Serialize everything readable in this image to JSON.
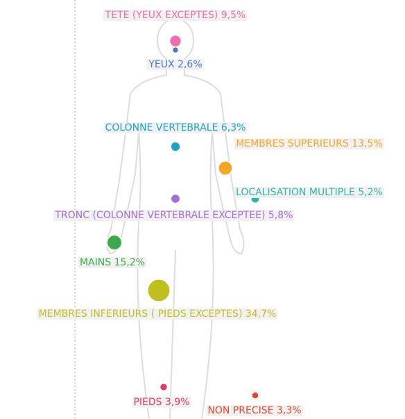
{
  "chart_data": {
    "type": "bubble",
    "categories": [
      "TETE (YEUX EXCEPTES)",
      "YEUX",
      "COLONNE VERTEBRALE",
      "MEMBRES SUPERIEURS",
      "LOCALISATION MULTIPLE",
      "TRONC (COLONNE VERTEBRALE EXCEPTEE)",
      "MAINS",
      "MEMBRES INFERIEURS ( PIEDS EXCEPTES)",
      "PIEDS",
      "NON PRECISE"
    ],
    "values": [
      9.5,
      2.6,
      6.3,
      13.5,
      5.2,
      5.8,
      15.2,
      34.7,
      3.9,
      3.3
    ],
    "value_labels": [
      "9,5%",
      "2,6%",
      "6,3%",
      "13,5%",
      "5,2%",
      "5,8%",
      "15,2%",
      "34,7%",
      "3,9%",
      "3,3%"
    ],
    "colors": [
      "#f06ea9",
      "#4a78c2",
      "#1ba3c6",
      "#f5a623",
      "#2cb8a8",
      "#a66dd4",
      "#3caa4a",
      "#bfbf1f",
      "#e8395a",
      "#e8462a"
    ]
  }
}
